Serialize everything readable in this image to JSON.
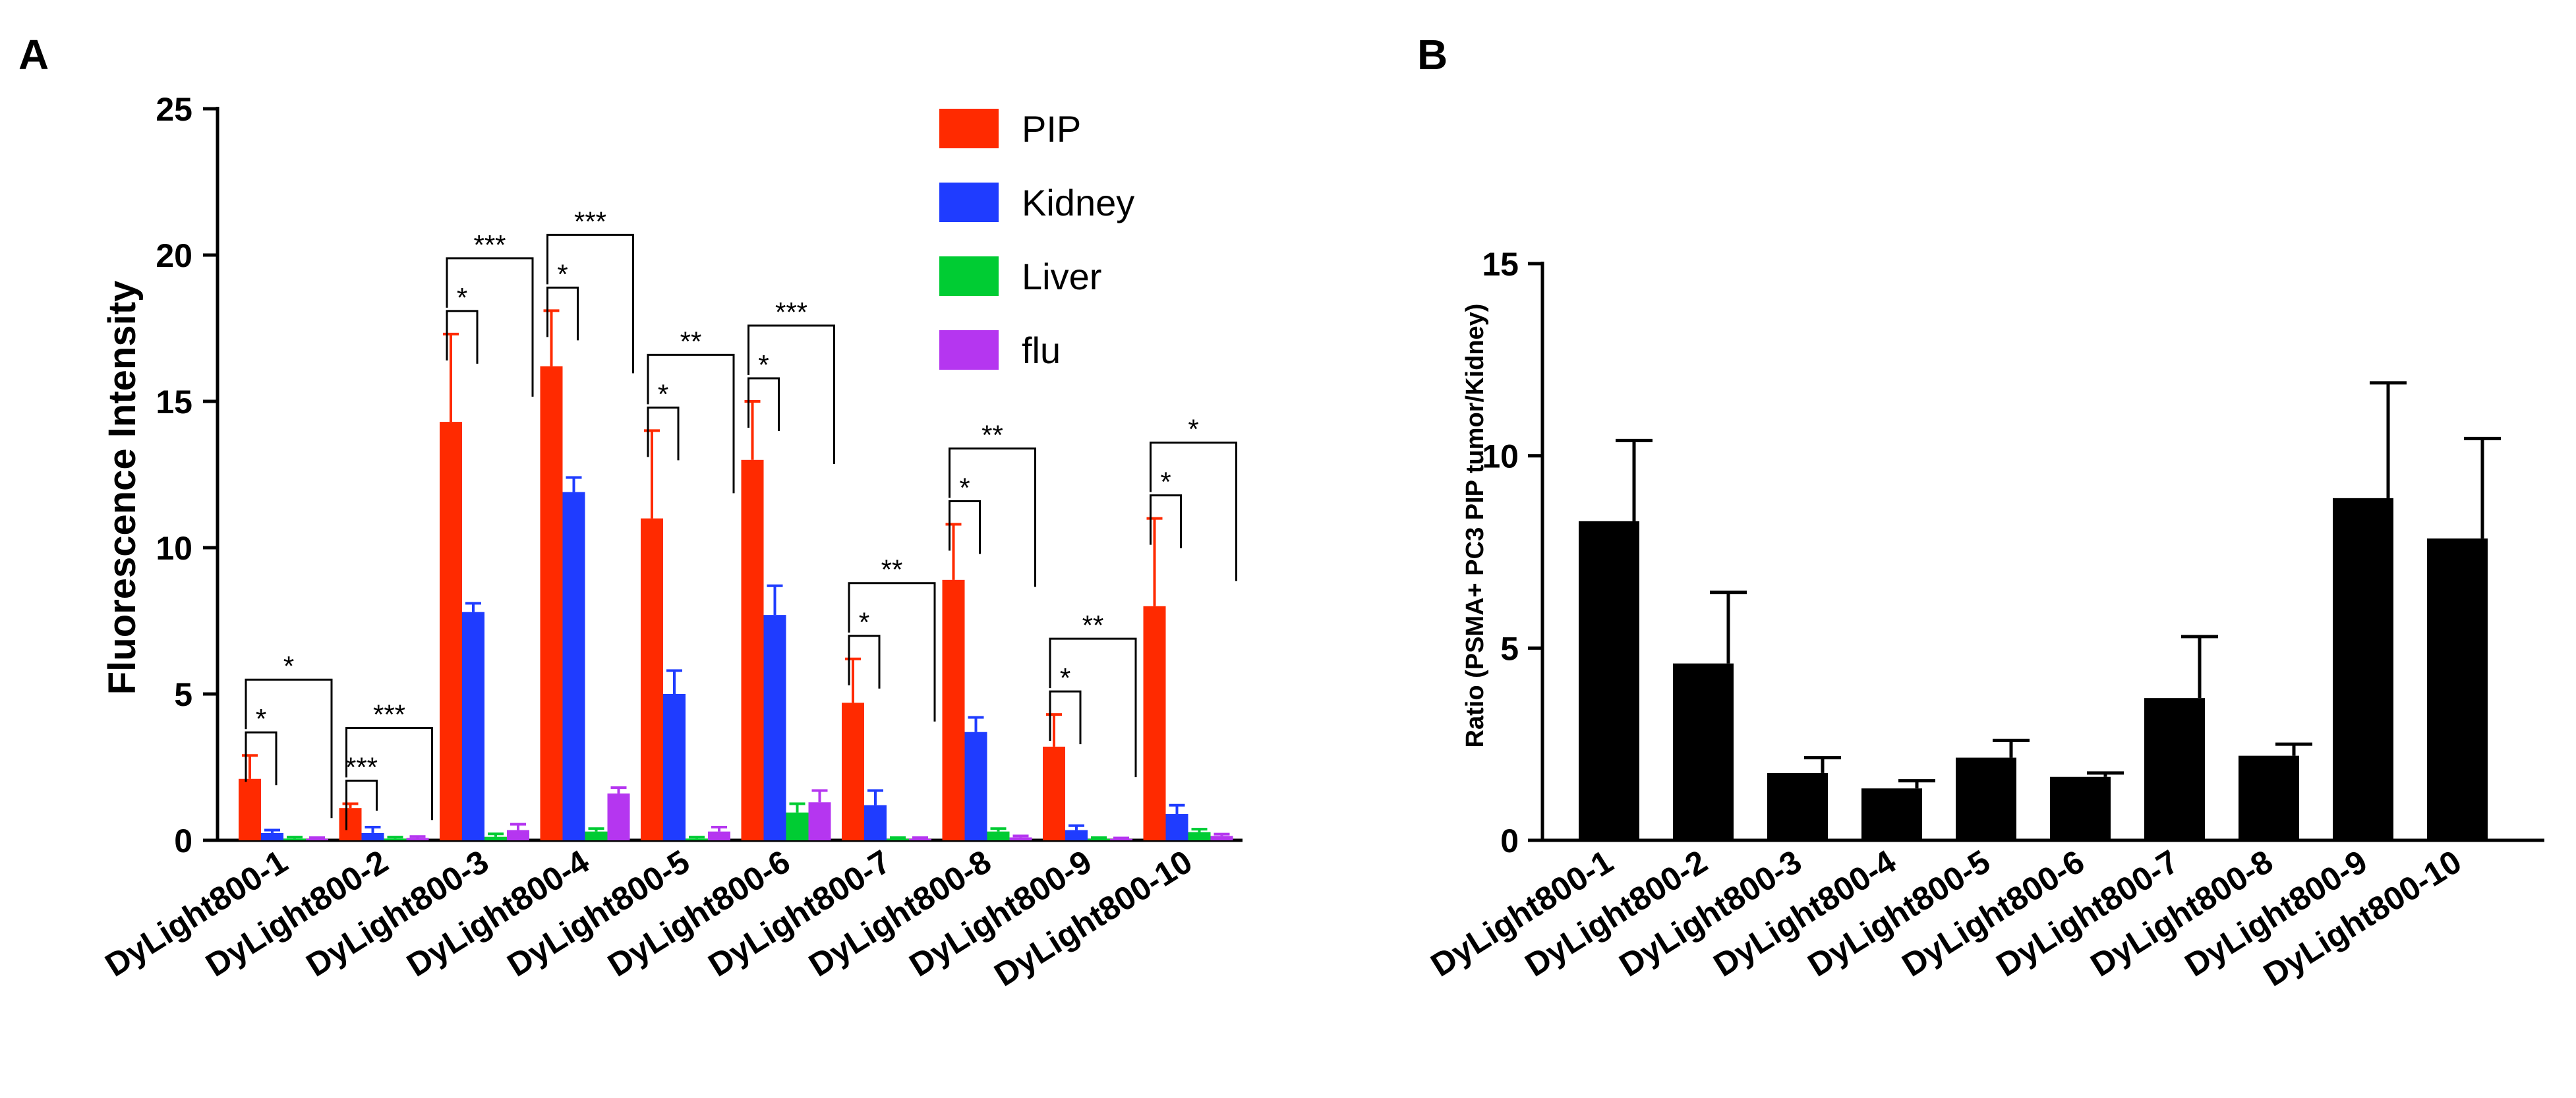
{
  "chart_data": [
    {
      "panel": "A",
      "type": "bar",
      "title": "",
      "xlabel": "",
      "ylabel": "Fluorescence Intensity",
      "ylim": [
        0,
        25
      ],
      "yticks": [
        0,
        5,
        10,
        15,
        20,
        25
      ],
      "grid": false,
      "legend_position": "top-right",
      "categories": [
        "DyLight800-1",
        "DyLight800-2",
        "DyLight800-3",
        "DyLight800-4",
        "DyLight800-5",
        "DyLight800-6",
        "DyLight800-7",
        "DyLight800-8",
        "DyLight800-9",
        "DyLight800-10"
      ],
      "series": [
        {
          "name": "PIP",
          "color": "#ff2a00",
          "values": [
            2.1,
            1.1,
            14.3,
            16.2,
            11.0,
            13.0,
            4.7,
            8.9,
            3.2,
            8.0
          ],
          "errors": [
            0.8,
            0.15,
            3.0,
            1.9,
            3.0,
            2.0,
            1.5,
            1.9,
            1.1,
            3.0
          ]
        },
        {
          "name": "Kidney",
          "color": "#1f3cff",
          "values": [
            0.25,
            0.25,
            7.8,
            11.9,
            5.0,
            7.7,
            1.2,
            3.7,
            0.35,
            0.9
          ],
          "errors": [
            0.1,
            0.2,
            0.3,
            0.5,
            0.8,
            1.0,
            0.5,
            0.5,
            0.15,
            0.3
          ]
        },
        {
          "name": "Liver",
          "color": "#00cc33",
          "values": [
            0.06,
            0.06,
            0.12,
            0.3,
            0.06,
            0.95,
            0.05,
            0.3,
            0.05,
            0.28
          ],
          "errors": [
            0.05,
            0.05,
            0.1,
            0.1,
            0.05,
            0.3,
            0.04,
            0.1,
            0.04,
            0.1
          ]
        },
        {
          "name": "flu",
          "color": "#b536f0",
          "values": [
            0.05,
            0.08,
            0.35,
            1.6,
            0.3,
            1.3,
            0.05,
            0.1,
            0.05,
            0.15
          ],
          "errors": [
            0.04,
            0.05,
            0.2,
            0.2,
            0.15,
            0.4,
            0.04,
            0.05,
            0.03,
            0.06
          ]
        }
      ],
      "significance": [
        {
          "category": 0,
          "to": "Kidney",
          "label": "*"
        },
        {
          "category": 0,
          "to": "flu",
          "label": "*"
        },
        {
          "category": 1,
          "to": "Kidney",
          "label": "***"
        },
        {
          "category": 1,
          "to": "flu",
          "label": "***"
        },
        {
          "category": 2,
          "to": "Kidney",
          "label": "*"
        },
        {
          "category": 2,
          "to": "flu",
          "label": "***"
        },
        {
          "category": 3,
          "to": "Kidney",
          "label": "*"
        },
        {
          "category": 3,
          "to": "flu",
          "label": "***"
        },
        {
          "category": 4,
          "to": "Kidney",
          "label": "*"
        },
        {
          "category": 4,
          "to": "flu",
          "label": "**"
        },
        {
          "category": 5,
          "to": "Kidney",
          "label": "*"
        },
        {
          "category": 5,
          "to": "flu",
          "label": "***"
        },
        {
          "category": 6,
          "to": "Kidney",
          "label": "*"
        },
        {
          "category": 6,
          "to": "flu",
          "label": "**"
        },
        {
          "category": 7,
          "to": "Kidney",
          "label": "*"
        },
        {
          "category": 7,
          "to": "flu",
          "label": "**"
        },
        {
          "category": 8,
          "to": "Kidney",
          "label": "*"
        },
        {
          "category": 8,
          "to": "flu",
          "label": "**"
        },
        {
          "category": 9,
          "to": "Kidney",
          "label": "*"
        },
        {
          "category": 9,
          "to": "flu",
          "label": "*"
        }
      ]
    },
    {
      "panel": "B",
      "type": "bar",
      "title": "",
      "xlabel": "",
      "ylabel": "Ratio (PSMA+ PC3 PIP tumor/Kidney)",
      "ylim": [
        0,
        15
      ],
      "yticks": [
        0,
        5,
        10,
        15
      ],
      "grid": false,
      "categories": [
        "DyLight800-1",
        "DyLight800-2",
        "DyLight800-3",
        "DyLight800-4",
        "DyLight800-5",
        "DyLight800-6",
        "DyLight800-7",
        "DyLight800-8",
        "DyLight800-9",
        "DyLight800-10"
      ],
      "series": [
        {
          "name": "Ratio",
          "color": "#000000",
          "values": [
            8.3,
            4.6,
            1.75,
            1.35,
            2.15,
            1.65,
            3.7,
            2.2,
            8.9,
            7.85
          ],
          "errors": [
            2.1,
            1.85,
            0.4,
            0.2,
            0.45,
            0.1,
            1.6,
            0.3,
            3.0,
            2.6
          ]
        }
      ]
    }
  ]
}
